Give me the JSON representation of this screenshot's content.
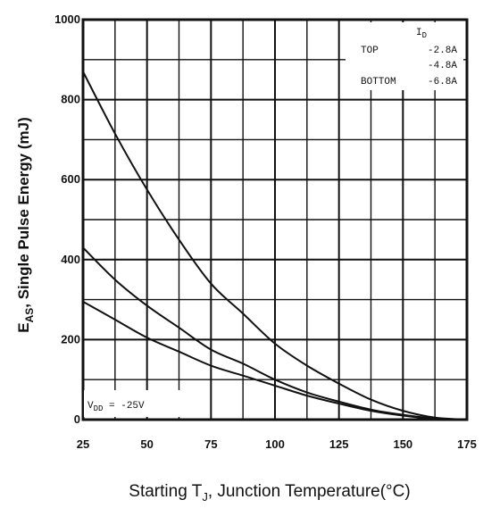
{
  "chart_data": {
    "type": "line",
    "title": "",
    "xlabel_prefix": "Starting T",
    "xlabel_sub": "J",
    "xlabel_suffix": ", Junction Temperature(°C)",
    "ylabel_prefix": "E",
    "ylabel_sub": "AS",
    "ylabel_suffix": ", Single Pulse Energy (mJ)",
    "xlim": [
      25,
      175
    ],
    "ylim": [
      0,
      1000
    ],
    "x_ticks": [
      25,
      50,
      75,
      100,
      125,
      150,
      175
    ],
    "x_tick_labels": [
      "25",
      "50",
      "75",
      "100",
      "125",
      "150",
      "175"
    ],
    "y_ticks": [
      0,
      200,
      400,
      600,
      800,
      1000
    ],
    "y_tick_labels": [
      "0",
      "200",
      "400",
      "600",
      "800",
      "1000"
    ],
    "grid": true,
    "legend": {
      "header_main": "I",
      "header_sub": "D",
      "placement": "top-right",
      "rows": [
        {
          "tag": "TOP",
          "value": "-2.8A"
        },
        {
          "tag": "",
          "value": "-4.8A"
        },
        {
          "tag": "BOTTOM",
          "value": "-6.8A"
        }
      ]
    },
    "annotation": {
      "prefix": "V",
      "sub": "DD",
      "suffix": " = -25V"
    },
    "series": [
      {
        "name": "-2.8A",
        "x": [
          25,
          37.5,
          50,
          62.5,
          75,
          87.5,
          100,
          112.5,
          125,
          137.5,
          150,
          162.5,
          175
        ],
        "y": [
          870,
          715,
          575,
          450,
          340,
          265,
          190,
          135,
          90,
          50,
          22,
          5,
          0
        ]
      },
      {
        "name": "-4.8A",
        "x": [
          25,
          37.5,
          50,
          62.5,
          75,
          87.5,
          100,
          112.5,
          125,
          137.5,
          150,
          162.5,
          175
        ],
        "y": [
          430,
          350,
          285,
          230,
          175,
          140,
          100,
          68,
          45,
          25,
          12,
          3,
          0
        ]
      },
      {
        "name": "-6.8A",
        "x": [
          25,
          37.5,
          50,
          62.5,
          75,
          87.5,
          100,
          112.5,
          125,
          137.5,
          150,
          162.5,
          175
        ],
        "y": [
          295,
          250,
          205,
          170,
          135,
          110,
          85,
          60,
          40,
          22,
          10,
          2,
          0
        ]
      }
    ]
  }
}
